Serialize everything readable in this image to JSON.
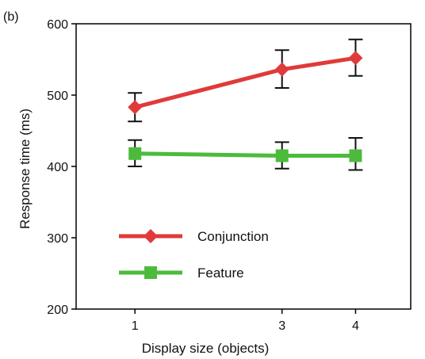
{
  "panel_label": "(b)",
  "chart_data": {
    "type": "line",
    "xlabel": "Display size (objects)",
    "ylabel": "Response time (ms)",
    "x": [
      1,
      3,
      4
    ],
    "x_ticks": [
      "1",
      "3",
      "4"
    ],
    "xlim": [
      0.2,
      4.75
    ],
    "ylim": [
      200,
      600
    ],
    "y_ticks": [
      "200",
      "300",
      "400",
      "500",
      "600"
    ],
    "y_tick_values": [
      200,
      300,
      400,
      500,
      600
    ],
    "grid": false,
    "legend_position": "bottom-left",
    "series": [
      {
        "name": "Conjunction",
        "values": [
          483,
          536,
          552
        ],
        "error_low": [
          463,
          510,
          527
        ],
        "error_high": [
          503,
          563,
          578
        ],
        "color": "#e03a3a",
        "marker": "diamond"
      },
      {
        "name": "Feature",
        "values": [
          418,
          415,
          415
        ],
        "error_low": [
          400,
          397,
          395
        ],
        "error_high": [
          437,
          434,
          440
        ],
        "color": "#4cbb3c",
        "marker": "square"
      }
    ]
  }
}
